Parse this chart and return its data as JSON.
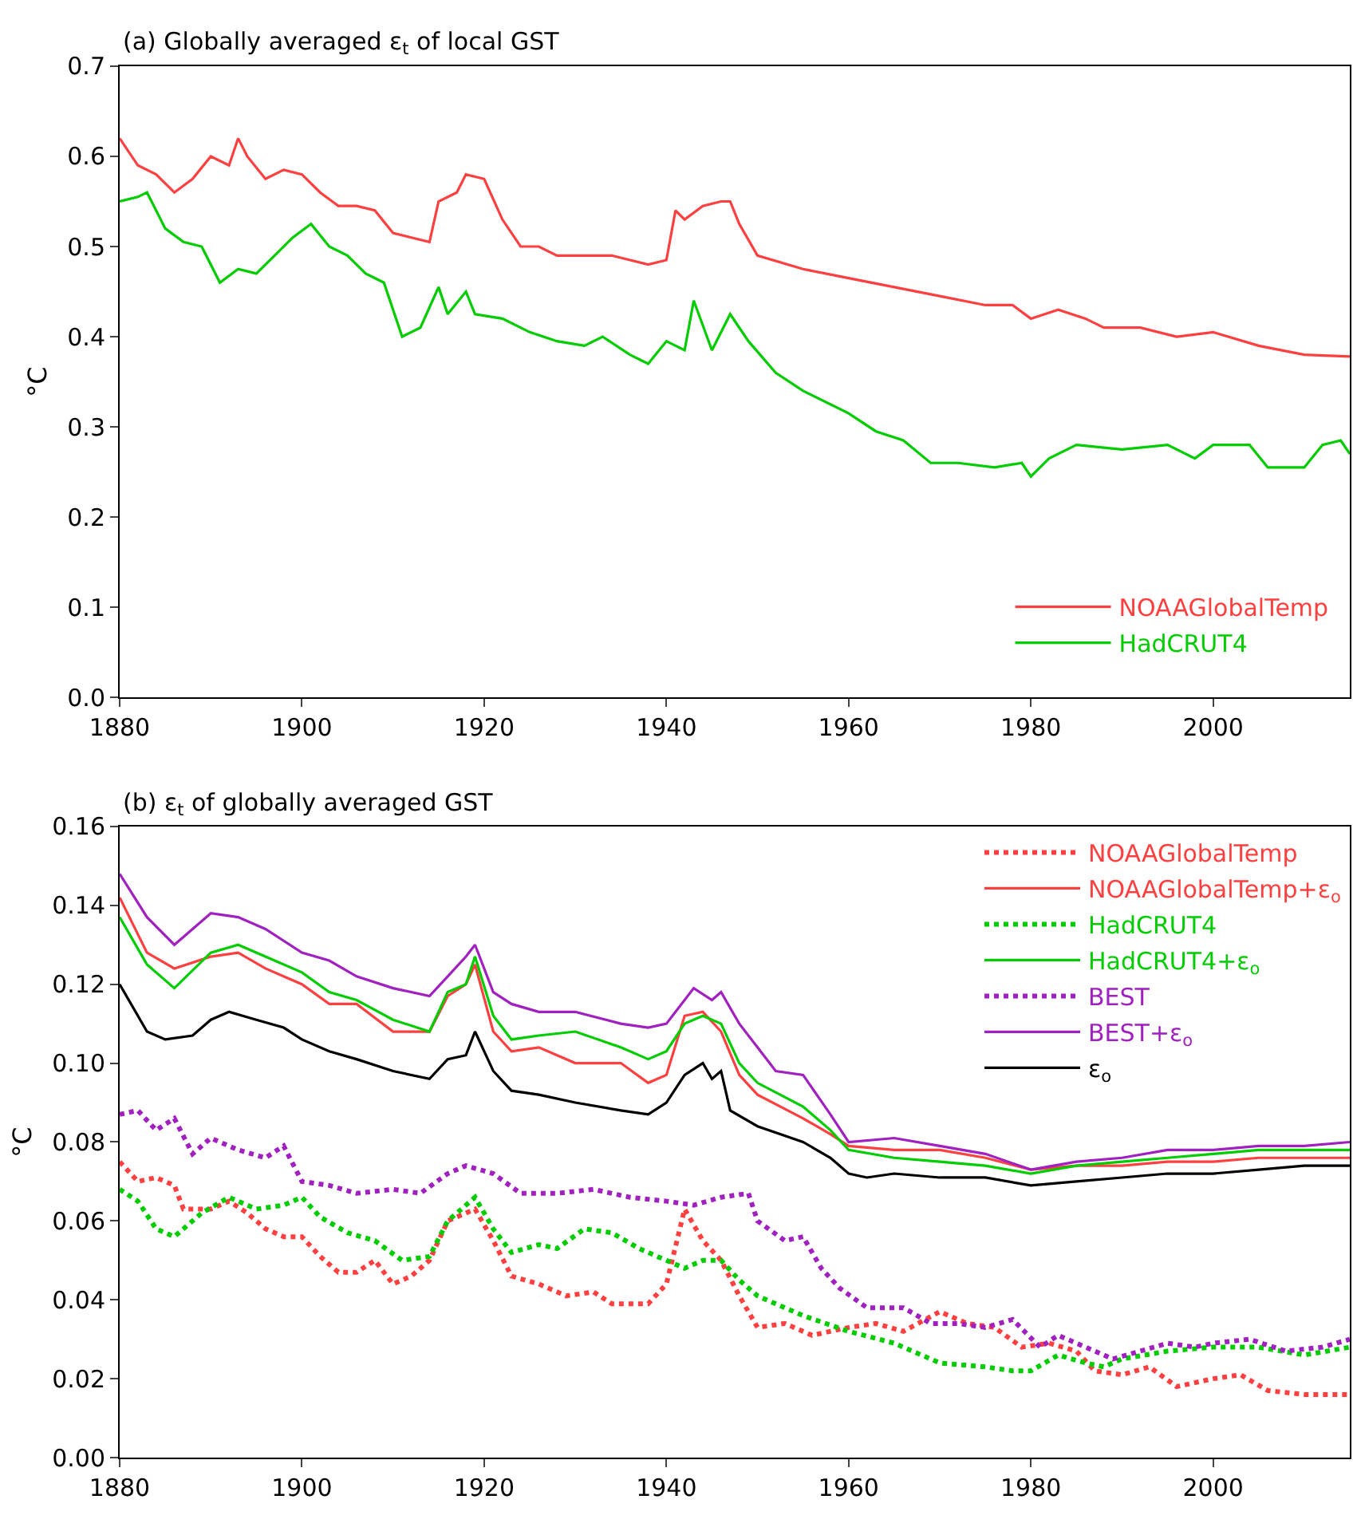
{
  "chart_data": [
    {
      "type": "line",
      "title": "(a) Globally averaged ε$_{t}$ of local GST",
      "ylabel": "°C",
      "xlim": [
        1880,
        2015
      ],
      "xticks": [
        1880,
        1900,
        1920,
        1940,
        1960,
        1980,
        2000
      ],
      "ylim": [
        0.0,
        0.7
      ],
      "yticks": [
        {
          "value": 0.0,
          "label": "0.0"
        },
        0.1,
        0.2,
        0.3,
        0.4,
        0.5,
        0.6,
        0.7
      ],
      "legend": "bottom right",
      "line_style": "solid",
      "series": [
        {
          "name": "NOAAGlobalTemp",
          "color": "#ff4040",
          "x": [
            1880,
            1882,
            1884,
            1886,
            1888,
            1890,
            1892,
            1893,
            1894,
            1896,
            1898,
            1900,
            1902,
            1904,
            1906,
            1908,
            1910,
            1912,
            1914,
            1915,
            1917,
            1918,
            1920,
            1922,
            1924,
            1926,
            1928,
            1930,
            1934,
            1938,
            1940,
            1941,
            1942,
            1944,
            1946,
            1947,
            1948,
            1950,
            1955,
            1960,
            1965,
            1970,
            1975,
            1978,
            1980,
            1983,
            1986,
            1988,
            1992,
            1996,
            2000,
            2005,
            2010,
            2015
          ],
          "values": [
            0.62,
            0.59,
            0.58,
            0.56,
            0.575,
            0.6,
            0.59,
            0.62,
            0.6,
            0.575,
            0.585,
            0.58,
            0.56,
            0.545,
            0.545,
            0.54,
            0.515,
            0.51,
            0.505,
            0.55,
            0.56,
            0.58,
            0.575,
            0.53,
            0.5,
            0.5,
            0.49,
            0.49,
            0.49,
            0.48,
            0.485,
            0.54,
            0.53,
            0.545,
            0.55,
            0.55,
            0.525,
            0.49,
            0.475,
            0.465,
            0.455,
            0.445,
            0.435,
            0.435,
            0.42,
            0.43,
            0.42,
            0.41,
            0.41,
            0.4,
            0.405,
            0.39,
            0.38,
            0.378
          ]
        },
        {
          "name": "HadCRUT4",
          "color": "#00cc00",
          "x": [
            1880,
            1882,
            1883,
            1885,
            1887,
            1889,
            1891,
            1893,
            1895,
            1897,
            1899,
            1901,
            1903,
            1905,
            1907,
            1909,
            1911,
            1913,
            1915,
            1916,
            1918,
            1919,
            1922,
            1925,
            1928,
            1931,
            1933,
            1936,
            1938,
            1940,
            1942,
            1943,
            1945,
            1947,
            1949,
            1952,
            1955,
            1960,
            1963,
            1966,
            1969,
            1972,
            1976,
            1979,
            1980,
            1982,
            1985,
            1990,
            1995,
            1998,
            2000,
            2004,
            2006,
            2010,
            2012,
            2014,
            2015
          ],
          "values": [
            0.55,
            0.555,
            0.56,
            0.52,
            0.505,
            0.5,
            0.46,
            0.475,
            0.47,
            0.49,
            0.51,
            0.525,
            0.5,
            0.49,
            0.47,
            0.46,
            0.4,
            0.41,
            0.455,
            0.425,
            0.45,
            0.425,
            0.42,
            0.405,
            0.395,
            0.39,
            0.4,
            0.38,
            0.37,
            0.395,
            0.385,
            0.44,
            0.385,
            0.425,
            0.395,
            0.36,
            0.34,
            0.315,
            0.295,
            0.285,
            0.26,
            0.26,
            0.255,
            0.26,
            0.245,
            0.265,
            0.28,
            0.275,
            0.28,
            0.265,
            0.28,
            0.28,
            0.255,
            0.255,
            0.28,
            0.285,
            0.27
          ]
        }
      ]
    },
    {
      "type": "line",
      "title": "(b) ε$_{t}$ of globally averaged GST",
      "ylabel": "°C",
      "xlim": [
        1880,
        2015
      ],
      "xticks": [
        1880,
        1900,
        1920,
        1940,
        1960,
        1980,
        2000
      ],
      "ylim": [
        0.0,
        0.16
      ],
      "yticks": [
        {
          "value": 0.0,
          "label": "0.00"
        },
        {
          "value": 0.02,
          "label": "0.02"
        },
        {
          "value": 0.04,
          "label": "0.04"
        },
        {
          "value": 0.06,
          "label": "0.06"
        },
        {
          "value": 0.08,
          "label": "0.08"
        },
        {
          "value": 0.1,
          "label": "0.10"
        },
        {
          "value": 0.12,
          "label": "0.12"
        },
        {
          "value": 0.14,
          "label": "0.14"
        },
        {
          "value": 0.16,
          "label": "0.16"
        }
      ],
      "legend": "top right",
      "series": [
        {
          "name": "NOAAGlobalTemp",
          "color": "#ff4040",
          "line_style": "dotted",
          "x": [
            1880,
            1882,
            1884,
            1886,
            1887,
            1890,
            1892,
            1894,
            1896,
            1898,
            1900,
            1902,
            1904,
            1906,
            1908,
            1910,
            1912,
            1914,
            1916,
            1918,
            1919,
            1921,
            1923,
            1926,
            1929,
            1932,
            1934,
            1938,
            1940,
            1942,
            1944,
            1946,
            1948,
            1950,
            1953,
            1956,
            1960,
            1963,
            1966,
            1970,
            1973,
            1976,
            1979,
            1982,
            1985,
            1987,
            1990,
            1993,
            1996,
            2000,
            2003,
            2006,
            2010,
            2015
          ],
          "values": [
            0.075,
            0.07,
            0.071,
            0.069,
            0.063,
            0.063,
            0.065,
            0.062,
            0.058,
            0.056,
            0.056,
            0.051,
            0.047,
            0.047,
            0.05,
            0.044,
            0.046,
            0.05,
            0.06,
            0.062,
            0.063,
            0.055,
            0.046,
            0.044,
            0.041,
            0.042,
            0.039,
            0.039,
            0.044,
            0.063,
            0.055,
            0.05,
            0.041,
            0.033,
            0.034,
            0.031,
            0.033,
            0.034,
            0.032,
            0.037,
            0.034,
            0.033,
            0.028,
            0.029,
            0.027,
            0.022,
            0.021,
            0.023,
            0.018,
            0.02,
            0.021,
            0.017,
            0.016,
            0.016
          ]
        },
        {
          "name": "NOAAGlobalTemp+ε$_{o}$",
          "color": "#ff4040",
          "line_style": "solid",
          "x": [
            1880,
            1883,
            1886,
            1890,
            1893,
            1896,
            1900,
            1903,
            1906,
            1910,
            1914,
            1916,
            1918,
            1919,
            1921,
            1923,
            1926,
            1930,
            1935,
            1938,
            1940,
            1942,
            1944,
            1946,
            1948,
            1950,
            1955,
            1958,
            1960,
            1965,
            1970,
            1975,
            1980,
            1985,
            1990,
            1995,
            2000,
            2005,
            2010,
            2015
          ],
          "values": [
            0.142,
            0.128,
            0.124,
            0.127,
            0.128,
            0.124,
            0.12,
            0.115,
            0.115,
            0.108,
            0.108,
            0.117,
            0.12,
            0.125,
            0.108,
            0.103,
            0.104,
            0.1,
            0.1,
            0.095,
            0.097,
            0.112,
            0.113,
            0.108,
            0.097,
            0.092,
            0.086,
            0.082,
            0.079,
            0.078,
            0.078,
            0.076,
            0.073,
            0.074,
            0.074,
            0.075,
            0.075,
            0.076,
            0.076,
            0.076
          ]
        },
        {
          "name": "HadCRUT4",
          "color": "#00cc00",
          "line_style": "dotted",
          "x": [
            1880,
            1882,
            1884,
            1886,
            1889,
            1892,
            1895,
            1898,
            1900,
            1902,
            1905,
            1908,
            1911,
            1914,
            1916,
            1919,
            1921,
            1923,
            1926,
            1928,
            1931,
            1934,
            1937,
            1940,
            1942,
            1944,
            1946,
            1948,
            1950,
            1955,
            1960,
            1965,
            1970,
            1975,
            1978,
            1980,
            1983,
            1986,
            1988,
            1990,
            1995,
            2000,
            2005,
            2010,
            2015
          ],
          "values": [
            0.068,
            0.065,
            0.058,
            0.056,
            0.062,
            0.066,
            0.063,
            0.064,
            0.066,
            0.061,
            0.057,
            0.055,
            0.05,
            0.051,
            0.06,
            0.066,
            0.058,
            0.052,
            0.054,
            0.053,
            0.058,
            0.057,
            0.053,
            0.05,
            0.048,
            0.05,
            0.05,
            0.045,
            0.041,
            0.036,
            0.032,
            0.029,
            0.024,
            0.023,
            0.022,
            0.022,
            0.026,
            0.024,
            0.023,
            0.025,
            0.027,
            0.028,
            0.028,
            0.026,
            0.028
          ]
        },
        {
          "name": "HadCRUT4+ε$_{o}$",
          "color": "#00cc00",
          "line_style": "solid",
          "x": [
            1880,
            1883,
            1886,
            1890,
            1893,
            1896,
            1900,
            1903,
            1906,
            1910,
            1914,
            1916,
            1918,
            1919,
            1921,
            1923,
            1926,
            1930,
            1935,
            1938,
            1940,
            1942,
            1944,
            1946,
            1948,
            1950,
            1955,
            1958,
            1960,
            1965,
            1970,
            1975,
            1980,
            1985,
            1990,
            1995,
            2000,
            2005,
            2010,
            2015
          ],
          "values": [
            0.137,
            0.125,
            0.119,
            0.128,
            0.13,
            0.127,
            0.123,
            0.118,
            0.116,
            0.111,
            0.108,
            0.118,
            0.12,
            0.127,
            0.112,
            0.106,
            0.107,
            0.108,
            0.104,
            0.101,
            0.103,
            0.11,
            0.112,
            0.11,
            0.1,
            0.095,
            0.089,
            0.083,
            0.078,
            0.076,
            0.075,
            0.074,
            0.072,
            0.074,
            0.075,
            0.076,
            0.077,
            0.078,
            0.078,
            0.078
          ]
        },
        {
          "name": "BEST",
          "color": "#a020c0",
          "line_style": "dotted",
          "x": [
            1880,
            1882,
            1884,
            1886,
            1888,
            1890,
            1893,
            1896,
            1898,
            1900,
            1903,
            1906,
            1910,
            1913,
            1916,
            1918,
            1921,
            1924,
            1928,
            1932,
            1936,
            1940,
            1943,
            1946,
            1949,
            1950,
            1953,
            1955,
            1957,
            1959,
            1962,
            1966,
            1969,
            1972,
            1975,
            1978,
            1981,
            1983,
            1985,
            1987,
            1989,
            1992,
            1995,
            1998,
            2000,
            2004,
            2008,
            2012,
            2015
          ],
          "values": [
            0.087,
            0.088,
            0.083,
            0.086,
            0.077,
            0.081,
            0.078,
            0.076,
            0.079,
            0.07,
            0.069,
            0.067,
            0.068,
            0.067,
            0.072,
            0.074,
            0.072,
            0.067,
            0.067,
            0.068,
            0.066,
            0.065,
            0.064,
            0.066,
            0.067,
            0.06,
            0.055,
            0.056,
            0.048,
            0.043,
            0.038,
            0.038,
            0.034,
            0.034,
            0.033,
            0.035,
            0.028,
            0.031,
            0.029,
            0.027,
            0.025,
            0.027,
            0.029,
            0.028,
            0.029,
            0.03,
            0.027,
            0.028,
            0.03
          ]
        },
        {
          "name": "BEST+ε$_{o}$",
          "color": "#a020c0",
          "line_style": "solid",
          "x": [
            1880,
            1883,
            1886,
            1890,
            1893,
            1896,
            1900,
            1903,
            1906,
            1910,
            1914,
            1916,
            1918,
            1919,
            1921,
            1923,
            1926,
            1930,
            1935,
            1938,
            1940,
            1943,
            1945,
            1946,
            1948,
            1950,
            1952,
            1955,
            1958,
            1960,
            1965,
            1970,
            1975,
            1980,
            1985,
            1990,
            1995,
            2000,
            2005,
            2010,
            2015
          ],
          "values": [
            0.148,
            0.137,
            0.13,
            0.138,
            0.137,
            0.134,
            0.128,
            0.126,
            0.122,
            0.119,
            0.117,
            0.122,
            0.127,
            0.13,
            0.118,
            0.115,
            0.113,
            0.113,
            0.11,
            0.109,
            0.11,
            0.119,
            0.116,
            0.118,
            0.11,
            0.104,
            0.098,
            0.097,
            0.087,
            0.08,
            0.081,
            0.079,
            0.077,
            0.073,
            0.075,
            0.076,
            0.078,
            0.078,
            0.079,
            0.079,
            0.08
          ]
        },
        {
          "name": "ε$_{o}$",
          "color": "#000000",
          "line_style": "solid",
          "x": [
            1880,
            1883,
            1885,
            1888,
            1890,
            1892,
            1895,
            1898,
            1900,
            1903,
            1906,
            1910,
            1914,
            1916,
            1918,
            1919,
            1921,
            1923,
            1926,
            1930,
            1935,
            1938,
            1940,
            1942,
            1944,
            1945,
            1946,
            1947,
            1950,
            1955,
            1958,
            1960,
            1962,
            1965,
            1970,
            1975,
            1980,
            1985,
            1990,
            1995,
            2000,
            2005,
            2010,
            2015
          ],
          "values": [
            0.12,
            0.108,
            0.106,
            0.107,
            0.111,
            0.113,
            0.111,
            0.109,
            0.106,
            0.103,
            0.101,
            0.098,
            0.096,
            0.101,
            0.102,
            0.108,
            0.098,
            0.093,
            0.092,
            0.09,
            0.088,
            0.087,
            0.09,
            0.097,
            0.1,
            0.096,
            0.098,
            0.088,
            0.084,
            0.08,
            0.076,
            0.072,
            0.071,
            0.072,
            0.071,
            0.071,
            0.069,
            0.07,
            0.071,
            0.072,
            0.072,
            0.073,
            0.074,
            0.074
          ]
        }
      ]
    }
  ]
}
